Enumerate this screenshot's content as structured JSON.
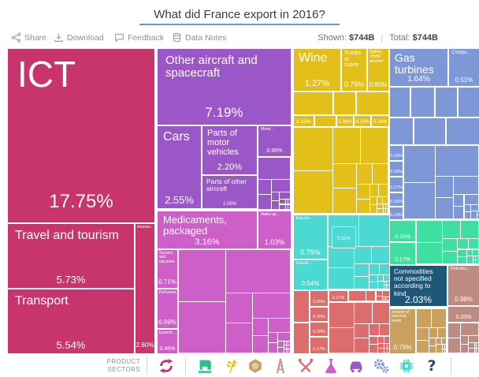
{
  "header": {
    "title": "What did France export in 2016?"
  },
  "toolbar": {
    "share": "Share",
    "download": "Download",
    "feedback": "Feedback",
    "data_notes": "Data Notes",
    "shown_label": "Shown:",
    "shown_value": "$744B",
    "total_label": "Total:",
    "total_value": "$744B"
  },
  "footer": {
    "label_line1": "PRODUCT",
    "label_line2": "SECTORS",
    "sectors": [
      {
        "name": "services",
        "color": "#C8356D"
      },
      {
        "name": "textiles",
        "color": "#2EBE8E"
      },
      {
        "name": "agriculture",
        "color": "#E3C019"
      },
      {
        "name": "stone",
        "color": "#C9A05F"
      },
      {
        "name": "minerals",
        "color": "#C79383"
      },
      {
        "name": "metals",
        "color": "#DD6C6C"
      },
      {
        "name": "chemicals",
        "color": "#CE5FC8"
      },
      {
        "name": "vehicles",
        "color": "#9B57C7"
      },
      {
        "name": "machinery",
        "color": "#7E97D7"
      },
      {
        "name": "electronics",
        "color": "#4BD9D2"
      },
      {
        "name": "other",
        "color": "#27486B"
      }
    ]
  },
  "chart_data": {
    "type": "treemap",
    "title": "What did France export in 2016?",
    "shown": "$744B",
    "total": "$744B",
    "unit": "share of total exports",
    "sectors": [
      {
        "name": "Services",
        "color": "#C8356D",
        "products": [
          {
            "label": "ICT",
            "share": "17.75%"
          },
          {
            "label": "Travel and tourism",
            "share": "5.73%"
          },
          {
            "label": "Transport",
            "share": "5.54%"
          },
          {
            "label": "Insuran...",
            "share": "2.60%"
          }
        ]
      },
      {
        "name": "Vehicles and aircraft",
        "color": "#9B57C7",
        "products": [
          {
            "label": "Other aircraft and spacecraft",
            "share": "7.19%"
          },
          {
            "label": "Cars",
            "share": "2.55%"
          },
          {
            "label": "Parts of motor vehicles",
            "share": "2.20%"
          },
          {
            "label": "Parts of other aircraft",
            "share": "1.05%"
          },
          {
            "label": "Motor...",
            "share": "0.90%"
          }
        ]
      },
      {
        "name": "Chemicals and cosmetics",
        "color": "#CE5FC8",
        "products": [
          {
            "label": "Medicaments, packaged",
            "share": "3.16%"
          },
          {
            "label": "Make-up...",
            "share": "1.03%"
          },
          {
            "label": "Serums and vaccines",
            "share": "0.71%"
          },
          {
            "label": "Perfumes",
            "share": "0.69%"
          },
          {
            "label": "Essenti...",
            "share": "0.46%"
          }
        ]
      },
      {
        "name": "Agriculture",
        "color": "#E3C019",
        "products": [
          {
            "label": "Wine",
            "share": "1.27%"
          },
          {
            "label": "Trunks or cases",
            "share": "0.79%"
          },
          {
            "label": "Spirits >80% alcohol",
            "share": "0.60%"
          },
          {
            "label": "",
            "share": "0.22%"
          },
          {
            "label": "",
            "share": "0.30%"
          },
          {
            "label": "",
            "share": "0.20%"
          },
          {
            "label": "",
            "share": "0.19%"
          }
        ]
      },
      {
        "name": "Machinery",
        "color": "#7E97D7",
        "products": [
          {
            "label": "Gas turbines",
            "share": "1.64%"
          },
          {
            "label": "Compu...",
            "share": "0.51%"
          },
          {
            "label": "",
            "share": "0.19%"
          },
          {
            "label": "",
            "share": "0.18%"
          },
          {
            "label": "",
            "share": "0.17%"
          },
          {
            "label": "",
            "share": "0.16%"
          },
          {
            "label": "",
            "share": "0.14%"
          }
        ]
      },
      {
        "name": "Textiles",
        "color": "#3FDFA2",
        "products": [
          {
            "label": "",
            "share": "0.18%"
          },
          {
            "label": "",
            "share": "0.17%"
          }
        ]
      },
      {
        "name": "Electronics",
        "color": "#4BD9D2",
        "products": [
          {
            "label": "Electro...",
            "share": "0.79%"
          },
          {
            "label": "Electri...",
            "share": "0.54%"
          },
          {
            "label": "",
            "share": "0.11%"
          }
        ]
      },
      {
        "name": "Metals",
        "color": "#DD6C6C",
        "products": [
          {
            "label": "",
            "share": "0.20%"
          },
          {
            "label": "",
            "share": "0.17%"
          },
          {
            "label": "",
            "share": "0.20%"
          },
          {
            "label": "",
            "share": "0.20%"
          },
          {
            "label": "",
            "share": "0.17%"
          }
        ]
      },
      {
        "name": "Other",
        "color": "#1D5878",
        "products": [
          {
            "label": "Commodities not specified according to kind",
            "share": "2.03%"
          }
        ]
      },
      {
        "name": "Stone and precious metals",
        "color": "#C9A05F",
        "products": [
          {
            "label": "Jewelry of precious metal",
            "share": "0.79%"
          }
        ]
      },
      {
        "name": "Minerals",
        "color": "#BE8B80",
        "products": [
          {
            "label": "Petroleu...",
            "share": "0.98%"
          },
          {
            "label": "",
            "share": "0.33%"
          }
        ]
      }
    ]
  }
}
